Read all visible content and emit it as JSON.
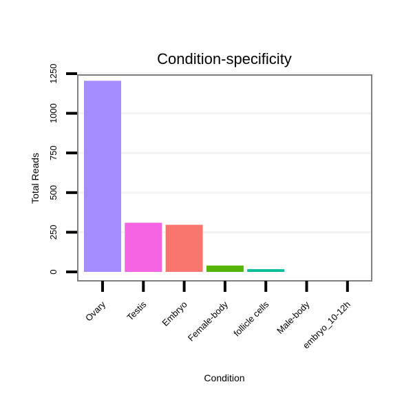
{
  "chart_data": {
    "type": "bar",
    "title": "Condition-specificity",
    "xlabel": "Condition",
    "ylabel": "Total Reads",
    "categories": [
      "Ovary",
      "Testis",
      "Embryo",
      "Female-body",
      "follicle cells",
      "Male-body",
      "embryo_10-12h"
    ],
    "values": [
      1205,
      310,
      297,
      40,
      17,
      0,
      0
    ],
    "colors": [
      "#a48bff",
      "#f564e3",
      "#f8766d",
      "#53b400",
      "#00c0a0",
      "#00b6eb",
      "#c49a00"
    ],
    "yticks": [
      0,
      250,
      500,
      750,
      1000,
      1250
    ],
    "ytick_labels": [
      "0",
      "250",
      "500",
      "750",
      "1000",
      "1250"
    ],
    "ylim": [
      0,
      1250
    ],
    "grid": true,
    "legend": "none"
  }
}
